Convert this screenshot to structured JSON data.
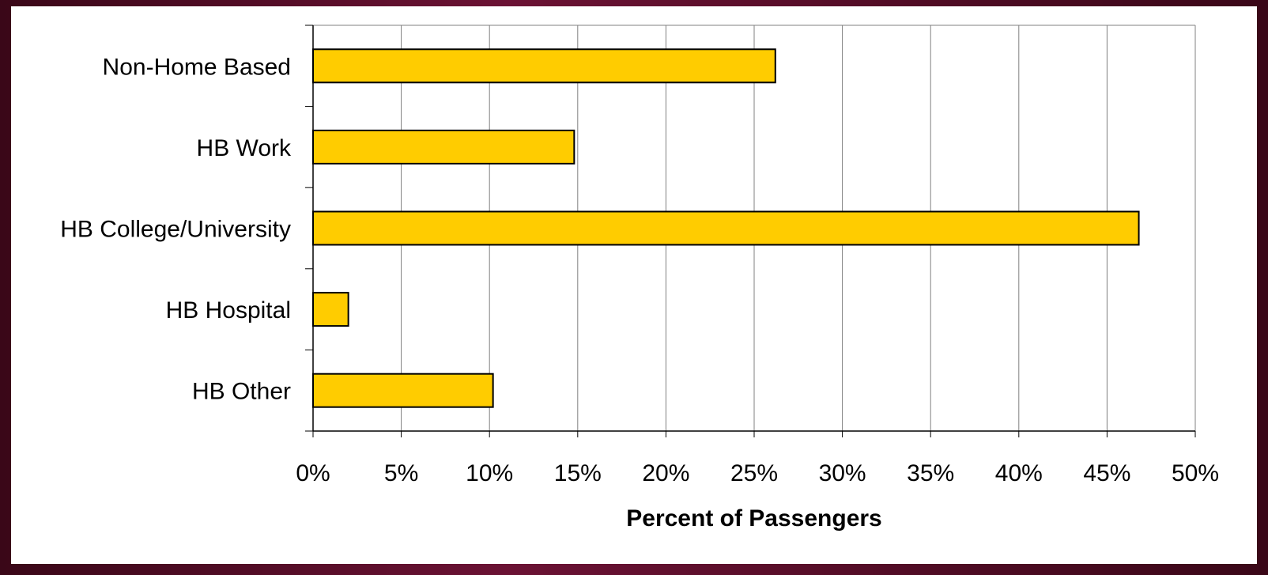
{
  "chart_data": {
    "type": "bar",
    "orientation": "horizontal",
    "categories": [
      "Non-Home Based",
      "HB Work",
      "HB College/University",
      "HB Hospital",
      "HB Other"
    ],
    "values": [
      26.2,
      14.8,
      46.8,
      2.0,
      10.2
    ],
    "xlabel": "Percent of Passengers",
    "ylabel": "",
    "xlim": [
      0,
      50
    ],
    "x_ticks": [
      "0%",
      "5%",
      "10%",
      "15%",
      "20%",
      "25%",
      "30%",
      "35%",
      "40%",
      "45%",
      "50%"
    ],
    "grid": "vertical",
    "legend": "none",
    "colors": {
      "bar_fill": "#ffcc00",
      "bar_stroke": "#000000",
      "grid": "#808080",
      "background": "#ffffff",
      "frame": "#4a0d24"
    }
  }
}
